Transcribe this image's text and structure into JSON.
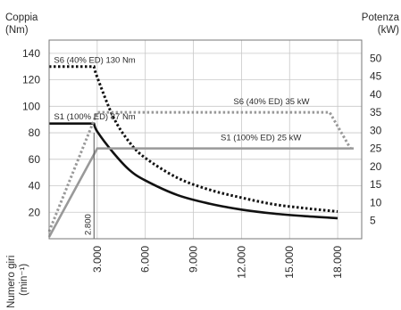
{
  "chart_data": {
    "type": "line",
    "y_left_label_line1": "Coppia",
    "y_left_label_line2": "(Nm)",
    "y_right_label_line1": "Potenza",
    "y_right_label_line2": "(kW)",
    "x_label_line1": "Numero giri",
    "x_label_line2": "(min⁻¹)",
    "x_ticks": [
      "3.000",
      "6.000",
      "9.000",
      "12.000",
      "15.000",
      "18.000"
    ],
    "x_tick_values": [
      3000,
      6000,
      9000,
      12000,
      15000,
      18000
    ],
    "left_ticks": [
      "20",
      "40",
      "60",
      "80",
      "100",
      "120",
      "140"
    ],
    "left_tick_values": [
      20,
      40,
      60,
      80,
      100,
      120,
      140
    ],
    "right_ticks": [
      "5",
      "10",
      "15",
      "20",
      "25",
      "30",
      "35",
      "40",
      "45",
      "50"
    ],
    "right_tick_values": [
      5,
      10,
      15,
      20,
      25,
      30,
      35,
      40,
      45,
      50
    ],
    "xlim": [
      0,
      19500
    ],
    "ylim_left": [
      0,
      150
    ],
    "ylim_right": [
      0,
      55
    ],
    "grid": true,
    "corner_speed_label": "2.800",
    "corner_speed": 2800,
    "series": [
      {
        "name": "S6 (40% ED) 130 Nm",
        "axis": "left",
        "style": "dotted",
        "color": "#111111",
        "x": [
          0,
          2800,
          3000,
          4000,
          5000,
          6000,
          8000,
          10000,
          12000,
          14000,
          16000,
          18000
        ],
        "y": [
          130,
          130,
          122,
          92,
          73,
          61,
          46,
          37,
          31,
          26,
          23,
          20.5
        ]
      },
      {
        "name": "S1 (100% ED) 87 Nm",
        "axis": "left",
        "style": "solid",
        "color": "#111111",
        "x": [
          0,
          2800,
          3000,
          4000,
          5000,
          6000,
          8000,
          10000,
          12000,
          14000,
          16000,
          18000
        ],
        "y": [
          87,
          87,
          81,
          65,
          52,
          44,
          33,
          26.5,
          22,
          19,
          17,
          15.5
        ]
      },
      {
        "name": "S6 (40% ED) 35 kW",
        "axis": "right",
        "style": "dotted",
        "color": "#999999",
        "x": [
          0,
          3000,
          17500,
          18800
        ],
        "y": [
          2,
          35,
          35,
          25
        ]
      },
      {
        "name": "S1 (100% ED) 25 kW",
        "axis": "right",
        "style": "solid",
        "color": "#999999",
        "x": [
          0,
          3000,
          19000
        ],
        "y": [
          0.5,
          25,
          25
        ]
      }
    ],
    "annotations": [
      {
        "text": "S6 (40% ED) 130 Nm",
        "x": 300,
        "y": 133,
        "axis": "left"
      },
      {
        "text": "S1 (100% ED) 87 Nm",
        "x": 300,
        "y": 90,
        "axis": "left"
      },
      {
        "text": "S6 (40% ED) 35 kW",
        "x": 11500,
        "y": 37.2,
        "axis": "right"
      },
      {
        "text": "S1 (100% ED) 25 kW",
        "x": 10700,
        "y": 27.2,
        "axis": "right"
      }
    ]
  }
}
